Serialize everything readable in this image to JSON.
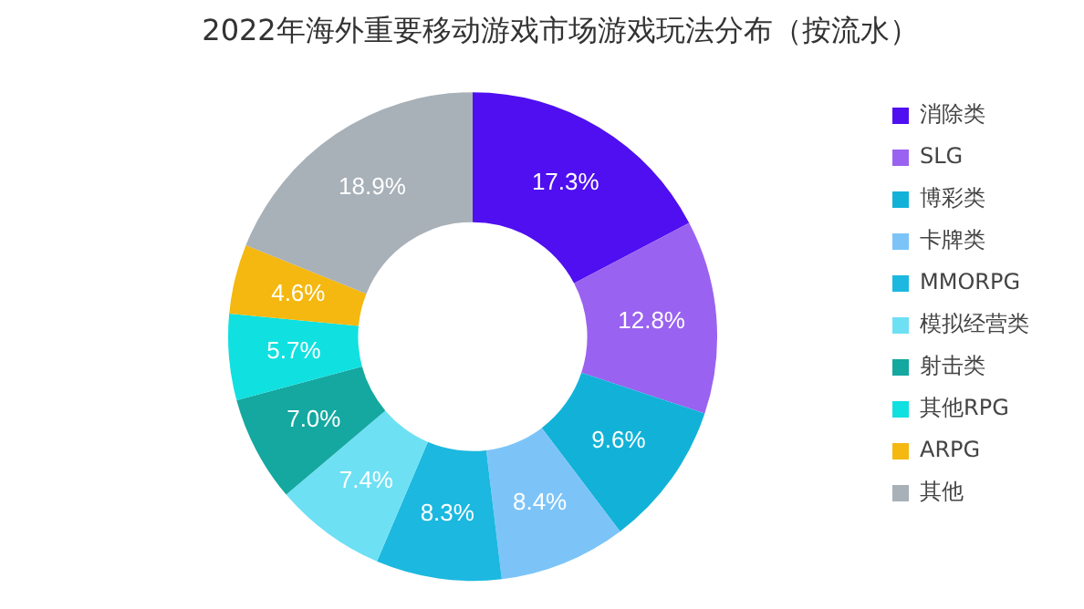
{
  "chart_data": {
    "type": "donut",
    "title": "2022年海外重要移动游戏市场游戏玩法分布（按流水）",
    "categories": [
      "消除类",
      "SLG",
      "博彩类",
      "卡牌类",
      "MMORPG",
      "模拟经营类",
      "射击类",
      "其他RPG",
      "ARPG",
      "其他"
    ],
    "values": [
      17.3,
      12.8,
      9.6,
      8.4,
      8.3,
      7.4,
      7.0,
      5.7,
      4.6,
      18.9
    ],
    "colors": [
      "#4f0ff0",
      "#9a62f0",
      "#12b2d8",
      "#7cc4f8",
      "#1cb8e0",
      "#6ee0f4",
      "#14a8a0",
      "#10e0e0",
      "#f4b810",
      "#a8b0b8"
    ],
    "value_labels": [
      "17.3%",
      "12.8%",
      "9.6%",
      "8.4%",
      "8.3%",
      "7.4%",
      "7.0%",
      "5.7%",
      "4.6%",
      "18.9%"
    ],
    "legend": "right"
  }
}
